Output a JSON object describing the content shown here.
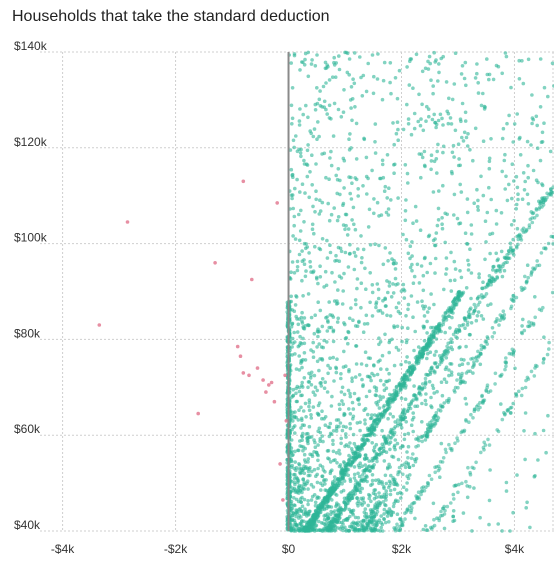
{
  "chart_data": {
    "type": "scatter",
    "title": "Households that take the standard deduction",
    "xlabel": "",
    "ylabel": "",
    "xlim": [
      -4400,
      4700
    ],
    "ylim": [
      40000,
      140000
    ],
    "grid": true,
    "x_ticks": [
      {
        "value": -4000,
        "label": "-$4k"
      },
      {
        "value": -2000,
        "label": "-$2k"
      },
      {
        "value": 0,
        "label": "$0"
      },
      {
        "value": 2000,
        "label": "$2k"
      },
      {
        "value": 4000,
        "label": "$4k"
      }
    ],
    "y_ticks": [
      {
        "value": 40000,
        "label": "$40k"
      },
      {
        "value": 60000,
        "label": "$60k"
      },
      {
        "value": 80000,
        "label": "$80k"
      },
      {
        "value": 100000,
        "label": "$100k"
      },
      {
        "value": 120000,
        "label": "$120k"
      },
      {
        "value": 140000,
        "label": "$140k"
      }
    ],
    "zero_line": 0,
    "colors": {
      "loss": "#e37b93",
      "gain": "#2eb597",
      "zero_line": "#8a8a8a",
      "grid": "#cfcfcf"
    },
    "series": [
      {
        "key": "loss",
        "points": [
          [
            -3350,
            83000
          ],
          [
            -2850,
            104500
          ],
          [
            -1600,
            64500
          ],
          [
            -1300,
            96000
          ],
          [
            -650,
            92500
          ],
          [
            -900,
            78500
          ],
          [
            -800,
            73000
          ],
          [
            -850,
            76500
          ],
          [
            -550,
            74000
          ],
          [
            -450,
            71500
          ],
          [
            -350,
            70500
          ],
          [
            -300,
            71000
          ],
          [
            -400,
            69000
          ],
          [
            -800,
            113000
          ],
          [
            -200,
            108500
          ],
          [
            -700,
            72500
          ],
          [
            -250,
            67000
          ],
          [
            -150,
            54000
          ],
          [
            -100,
            46500
          ],
          [
            -60,
            72500
          ],
          [
            -40,
            63000
          ]
        ]
      },
      {
        "key": "gain",
        "points": [],
        "generated": {
          "count": 4200,
          "seed": 17,
          "bands": [
            {
              "x0": 0,
              "y0": 40000,
              "slope": 0.0,
              "spread_x": 25,
              "share": 0.1
            },
            {
              "x0": 300,
              "y0": 40000,
              "slope": 0.0555,
              "spread_x": 60,
              "share": 0.16
            },
            {
              "x0": 700,
              "y0": 40000,
              "slope": 0.0555,
              "spread_x": 60,
              "share": 0.1
            },
            {
              "x0": 1300,
              "y0": 40000,
              "slope": 0.0555,
              "spread_x": 70,
              "share": 0.07
            },
            {
              "x0": 1900,
              "y0": 40000,
              "slope": 0.0555,
              "spread_x": 70,
              "share": 0.05
            },
            {
              "x0": 2500,
              "y0": 40000,
              "slope": 0.0555,
              "spread_x": 70,
              "share": 0.03
            }
          ]
        }
      }
    ]
  }
}
